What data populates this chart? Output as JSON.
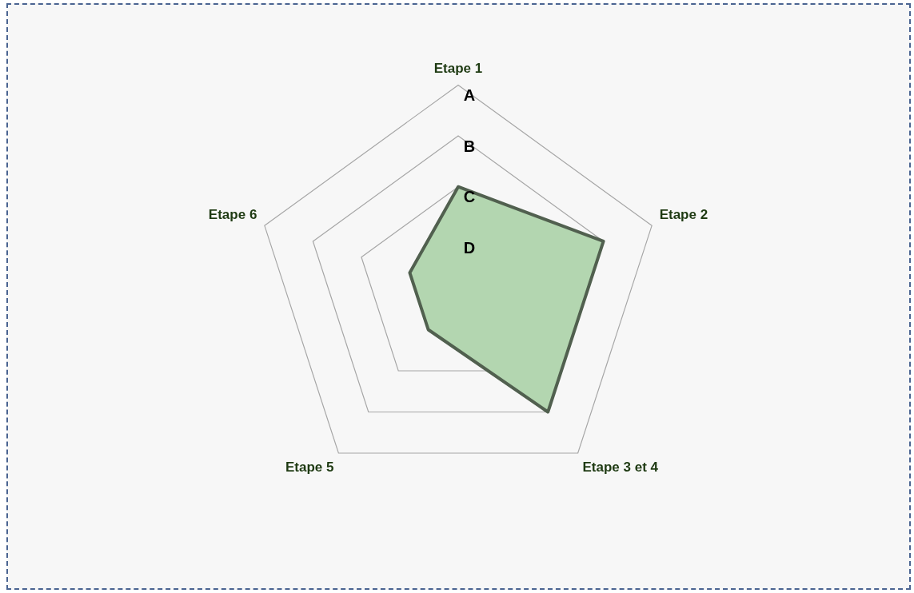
{
  "chart_data": {
    "type": "radar",
    "categories": [
      "Etape 1",
      "Etape 2",
      "Etape 3 et 4",
      "Etape 5",
      "Etape 6"
    ],
    "series": [
      {
        "color": "#b3d6b0",
        "values": [
          2,
          3,
          3,
          1,
          1
        ]
      }
    ],
    "ylim": [
      0,
      4
    ],
    "yticks": [
      {
        "value": 1,
        "label": "D"
      },
      {
        "value": 2,
        "label": "C"
      },
      {
        "value": 3,
        "label": "B"
      },
      {
        "value": 4,
        "label": "A"
      }
    ],
    "grid": true,
    "legend": false,
    "marker": "none"
  }
}
